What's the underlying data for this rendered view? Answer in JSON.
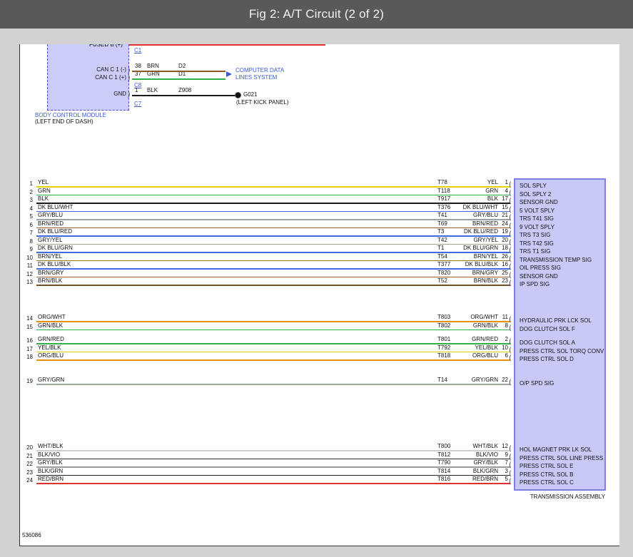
{
  "header": {
    "title": "Fig 2: A/T Circuit (2 of 2)"
  },
  "footer_code": "536086",
  "colors": {
    "link_blue": "#3c5bd0",
    "module_fill": "#ccccf8",
    "module_border": "#5050d0",
    "trans_fill": "#c9c9f8",
    "trans_border": "#8080e0",
    "cut_wire_red": "#e03030"
  },
  "bcm": {
    "top_fragment": "FUSED B (+)",
    "name": "BODY CONTROL MODULE",
    "location": "(LEFT END OF DASH)",
    "connectors": {
      "c1": "C1",
      "c8": "C8",
      "c7": "C7"
    },
    "pins": [
      {
        "pin": "38",
        "label": "CAN C 1 (-)",
        "wire": "BRN",
        "circuit": "D2",
        "hex": "#8a5a2a"
      },
      {
        "pin": "37",
        "label": "CAN C 1 (+)",
        "wire": "GRN",
        "circuit": "D1",
        "hex": "#2db34a"
      },
      {
        "pin": "1",
        "label": "GND",
        "wire": "BLK",
        "circuit": "Z908",
        "hex": "#1a1a1a"
      }
    ],
    "destination_line1": "COMPUTER DATA",
    "destination_line2": "LINES SYSTEM",
    "ground": {
      "label": "G021",
      "location": "(LEFT KICK PANEL)"
    }
  },
  "transmission": {
    "label": "TRANSMISSION ASSEMBLY"
  },
  "wires": [
    {
      "n": 1,
      "color": "YEL",
      "code": "T78",
      "pin": 1,
      "signal": "SOL SPLY",
      "hex": "#e3d400"
    },
    {
      "n": 2,
      "color": "GRN",
      "code": "T118",
      "pin": 4,
      "signal": "SOL SPLY 2",
      "hex": "#2db34a"
    },
    {
      "n": 3,
      "color": "BLK",
      "code": "T917",
      "pin": 17,
      "signal": "SENSOR GND",
      "hex": "#1a1a1a"
    },
    {
      "n": 4,
      "color": "DK BLU/WHT",
      "code": "T376",
      "pin": 15,
      "signal": "5 VOLT SPLY",
      "hex": "#4169e1"
    },
    {
      "n": 5,
      "color": "GRY/BLU",
      "code": "T41",
      "pin": 21,
      "signal": "TRS T41 SIG",
      "hex": "#9aa0aa"
    },
    {
      "n": 6,
      "color": "BRN/RED",
      "code": "T69",
      "pin": 24,
      "signal": "9 VOLT SPLY",
      "hex": "#9c5a28"
    },
    {
      "n": 7,
      "color": "DK BLU/RED",
      "code": "T3",
      "pin": 19,
      "signal": "TRS T3 SIG",
      "hex": "#4169e1"
    },
    {
      "n": 8,
      "color": "GRY/YEL",
      "code": "T42",
      "pin": 20,
      "signal": "TRS T42 SIG",
      "hex": "#a3a394"
    },
    {
      "n": 9,
      "color": "DK BLU/GRN",
      "code": "T1",
      "pin": 18,
      "signal": "TRS T1 SIG",
      "hex": "#4169e1"
    },
    {
      "n": 10,
      "color": "BRN/YEL",
      "code": "T54",
      "pin": 26,
      "signal": "TRANSMISSION TEMP SIG",
      "hex": "#9a7a20"
    },
    {
      "n": 11,
      "color": "DK BLU/BLK",
      "code": "T377",
      "pin": 16,
      "signal": "OIL PRESS SIG",
      "hex": "#4169e1"
    },
    {
      "n": 12,
      "color": "BRN/GRY",
      "code": "T820",
      "pin": 25,
      "signal": "SENSOR GND",
      "hex": "#96663a"
    },
    {
      "n": 13,
      "color": "BRN/BLK",
      "code": "T52",
      "pin": 23,
      "signal": "IP SPD SIG",
      "hex": "#7a4f23"
    },
    {
      "n": 14,
      "color": "ORG/WHT",
      "code": "T803",
      "pin": 11,
      "signal": "HYDRAULIC PRK LCK SOL",
      "hex": "#e8920a"
    },
    {
      "n": 15,
      "color": "GRN/BLK",
      "code": "T802",
      "pin": 8,
      "signal": "DOG CLUTCH SOL F",
      "hex": "#2db34a"
    },
    {
      "n": 16,
      "color": "GRN/RED",
      "code": "T801",
      "pin": 2,
      "signal": "DOG CLUTCH SOL A",
      "hex": "#2db34a"
    },
    {
      "n": 17,
      "color": "YEL/BLK",
      "code": "T792",
      "pin": 10,
      "signal": "PRESS CTRL SOL TORQ CONV",
      "hex": "#e3d400"
    },
    {
      "n": 18,
      "color": "ORG/BLU",
      "code": "T818",
      "pin": 6,
      "signal": "PRESS CTRL SOL D",
      "hex": "#e8920a"
    },
    {
      "n": 19,
      "color": "GRY/GRN",
      "code": "T14",
      "pin": 22,
      "signal": "O/P SPD SIG",
      "hex": "#9aa89a"
    },
    {
      "n": 20,
      "color": "WHT/BLK",
      "code": "T800",
      "pin": 12,
      "signal": "HOL MAGNET PRK LK SOL",
      "hex": "#cfcfcf"
    },
    {
      "n": 21,
      "color": "BLK/VIO",
      "code": "T812",
      "pin": 9,
      "signal": "PRESS CTRL SOL LINE PRESS",
      "hex": "#2a2a2a"
    },
    {
      "n": 22,
      "color": "GRY/BLK",
      "code": "T790",
      "pin": 7,
      "signal": "PRESS CTRL SOL E",
      "hex": "#9a9a9a"
    },
    {
      "n": 23,
      "color": "BLK/GRN",
      "code": "T814",
      "pin": 3,
      "signal": "PRESS CTRL SOL B",
      "hex": "#222222"
    },
    {
      "n": 24,
      "color": "RED/BRN",
      "code": "T816",
      "pin": 5,
      "signal": "PRESS CTRL SOL C",
      "hex": "#e03030"
    }
  ]
}
